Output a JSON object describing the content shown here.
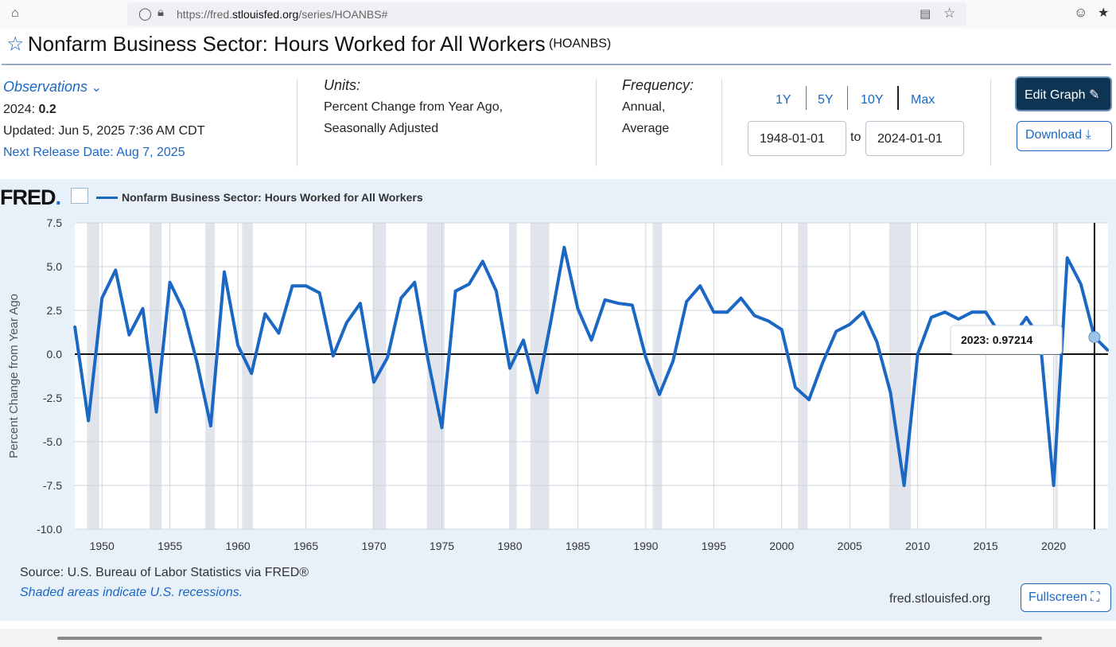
{
  "browser": {
    "url_prefix": "https://fred.",
    "url_domain": "stlouisfed.org",
    "url_path": "/series/HOANBS#"
  },
  "header": {
    "title": "Nonfarm Business Sector: Hours Worked for All Workers",
    "series_code": "(HOANBS)"
  },
  "observations": {
    "label": "Observations",
    "latest_year": "2024:",
    "latest_value": "0.2",
    "updated": "Updated: Jun 5, 2025 7:36 AM CDT",
    "next_release": "Next Release Date: Aug 7, 2025"
  },
  "units": {
    "label": "Units:",
    "line1": "Percent Change from Year Ago,",
    "line2": "Seasonally Adjusted"
  },
  "frequency": {
    "label": "Frequency:",
    "line1": "Annual,",
    "line2": "Average"
  },
  "range": {
    "options": [
      "1Y",
      "5Y",
      "10Y",
      "Max"
    ],
    "start": "1948-01-01",
    "to_label": "to",
    "end": "2024-01-01"
  },
  "buttons": {
    "edit_graph": "Edit Graph",
    "download": "Download",
    "fullscreen": "Fullscreen"
  },
  "chart_panel": {
    "logo": "FRED",
    "source": "Source: U.S. Bureau of Labor Statistics via FRED®",
    "shaded_note": "Shaded areas indicate U.S. recessions.",
    "site": "fred.stlouisfed.org"
  },
  "chart_data": {
    "type": "line",
    "title": "",
    "ylabel": "Percent Change from Year Ago",
    "xlabel": "",
    "legend": "Nonfarm Business Sector: Hours Worked for All Workers",
    "line_color": "#1b67c4",
    "xlim": [
      1948,
      2024
    ],
    "ylim": [
      -10,
      7.5
    ],
    "xticks": [
      1950,
      1955,
      1960,
      1965,
      1970,
      1975,
      1980,
      1985,
      1990,
      1995,
      2000,
      2005,
      2010,
      2015,
      2020
    ],
    "yticks": [
      "7.5",
      "5.0",
      "2.5",
      "0.0",
      "-2.5",
      "-5.0",
      "-7.5",
      "-10.0"
    ],
    "recessions": [
      [
        1948.9,
        1949.8
      ],
      [
        1953.5,
        1954.4
      ],
      [
        1957.6,
        1958.3
      ],
      [
        1960.3,
        1961.1
      ],
      [
        1969.9,
        1970.9
      ],
      [
        1973.9,
        1975.2
      ],
      [
        1980.0,
        1980.5
      ],
      [
        1981.5,
        1982.9
      ],
      [
        1990.5,
        1991.2
      ],
      [
        2001.2,
        2001.9
      ],
      [
        2007.9,
        2009.5
      ],
      [
        2020.1,
        2020.3
      ]
    ],
    "tooltip": {
      "year": "2023:",
      "value": "0.97214"
    },
    "series": [
      {
        "name": "Nonfarm Business Sector: Hours Worked for All Workers",
        "x": [
          1948,
          1949,
          1950,
          1951,
          1952,
          1953,
          1954,
          1955,
          1956,
          1957,
          1958,
          1959,
          1960,
          1961,
          1962,
          1963,
          1964,
          1965,
          1966,
          1967,
          1968,
          1969,
          1970,
          1971,
          1972,
          1973,
          1974,
          1975,
          1976,
          1977,
          1978,
          1979,
          1980,
          1981,
          1982,
          1983,
          1984,
          1985,
          1986,
          1987,
          1988,
          1989,
          1990,
          1991,
          1992,
          1993,
          1994,
          1995,
          1996,
          1997,
          1998,
          1999,
          2000,
          2001,
          2002,
          2003,
          2004,
          2005,
          2006,
          2007,
          2008,
          2009,
          2010,
          2011,
          2012,
          2013,
          2014,
          2015,
          2016,
          2017,
          2018,
          2019,
          2020,
          2021,
          2022,
          2023,
          2024
        ],
        "values": [
          1.6,
          -3.8,
          3.2,
          4.8,
          1.1,
          2.6,
          -3.3,
          4.1,
          2.5,
          -0.5,
          -4.1,
          4.7,
          0.5,
          -1.1,
          2.3,
          1.2,
          3.9,
          3.9,
          3.5,
          -0.1,
          1.8,
          2.9,
          -1.6,
          -0.2,
          3.2,
          4.1,
          -0.4,
          -4.2,
          3.6,
          4.0,
          5.3,
          3.6,
          -0.8,
          0.8,
          -2.2,
          1.8,
          6.1,
          2.6,
          0.8,
          3.1,
          2.9,
          2.8,
          -0.2,
          -2.3,
          -0.4,
          3.0,
          3.9,
          2.4,
          2.4,
          3.2,
          2.2,
          1.9,
          1.4,
          -1.9,
          -2.6,
          -0.5,
          1.3,
          1.7,
          2.4,
          0.7,
          -2.2,
          -7.5,
          0.0,
          2.1,
          2.4,
          2.0,
          2.4,
          2.4,
          1.2,
          1.0,
          2.1,
          0.9,
          -7.5,
          5.5,
          4.0,
          0.97214,
          0.2
        ]
      }
    ]
  }
}
